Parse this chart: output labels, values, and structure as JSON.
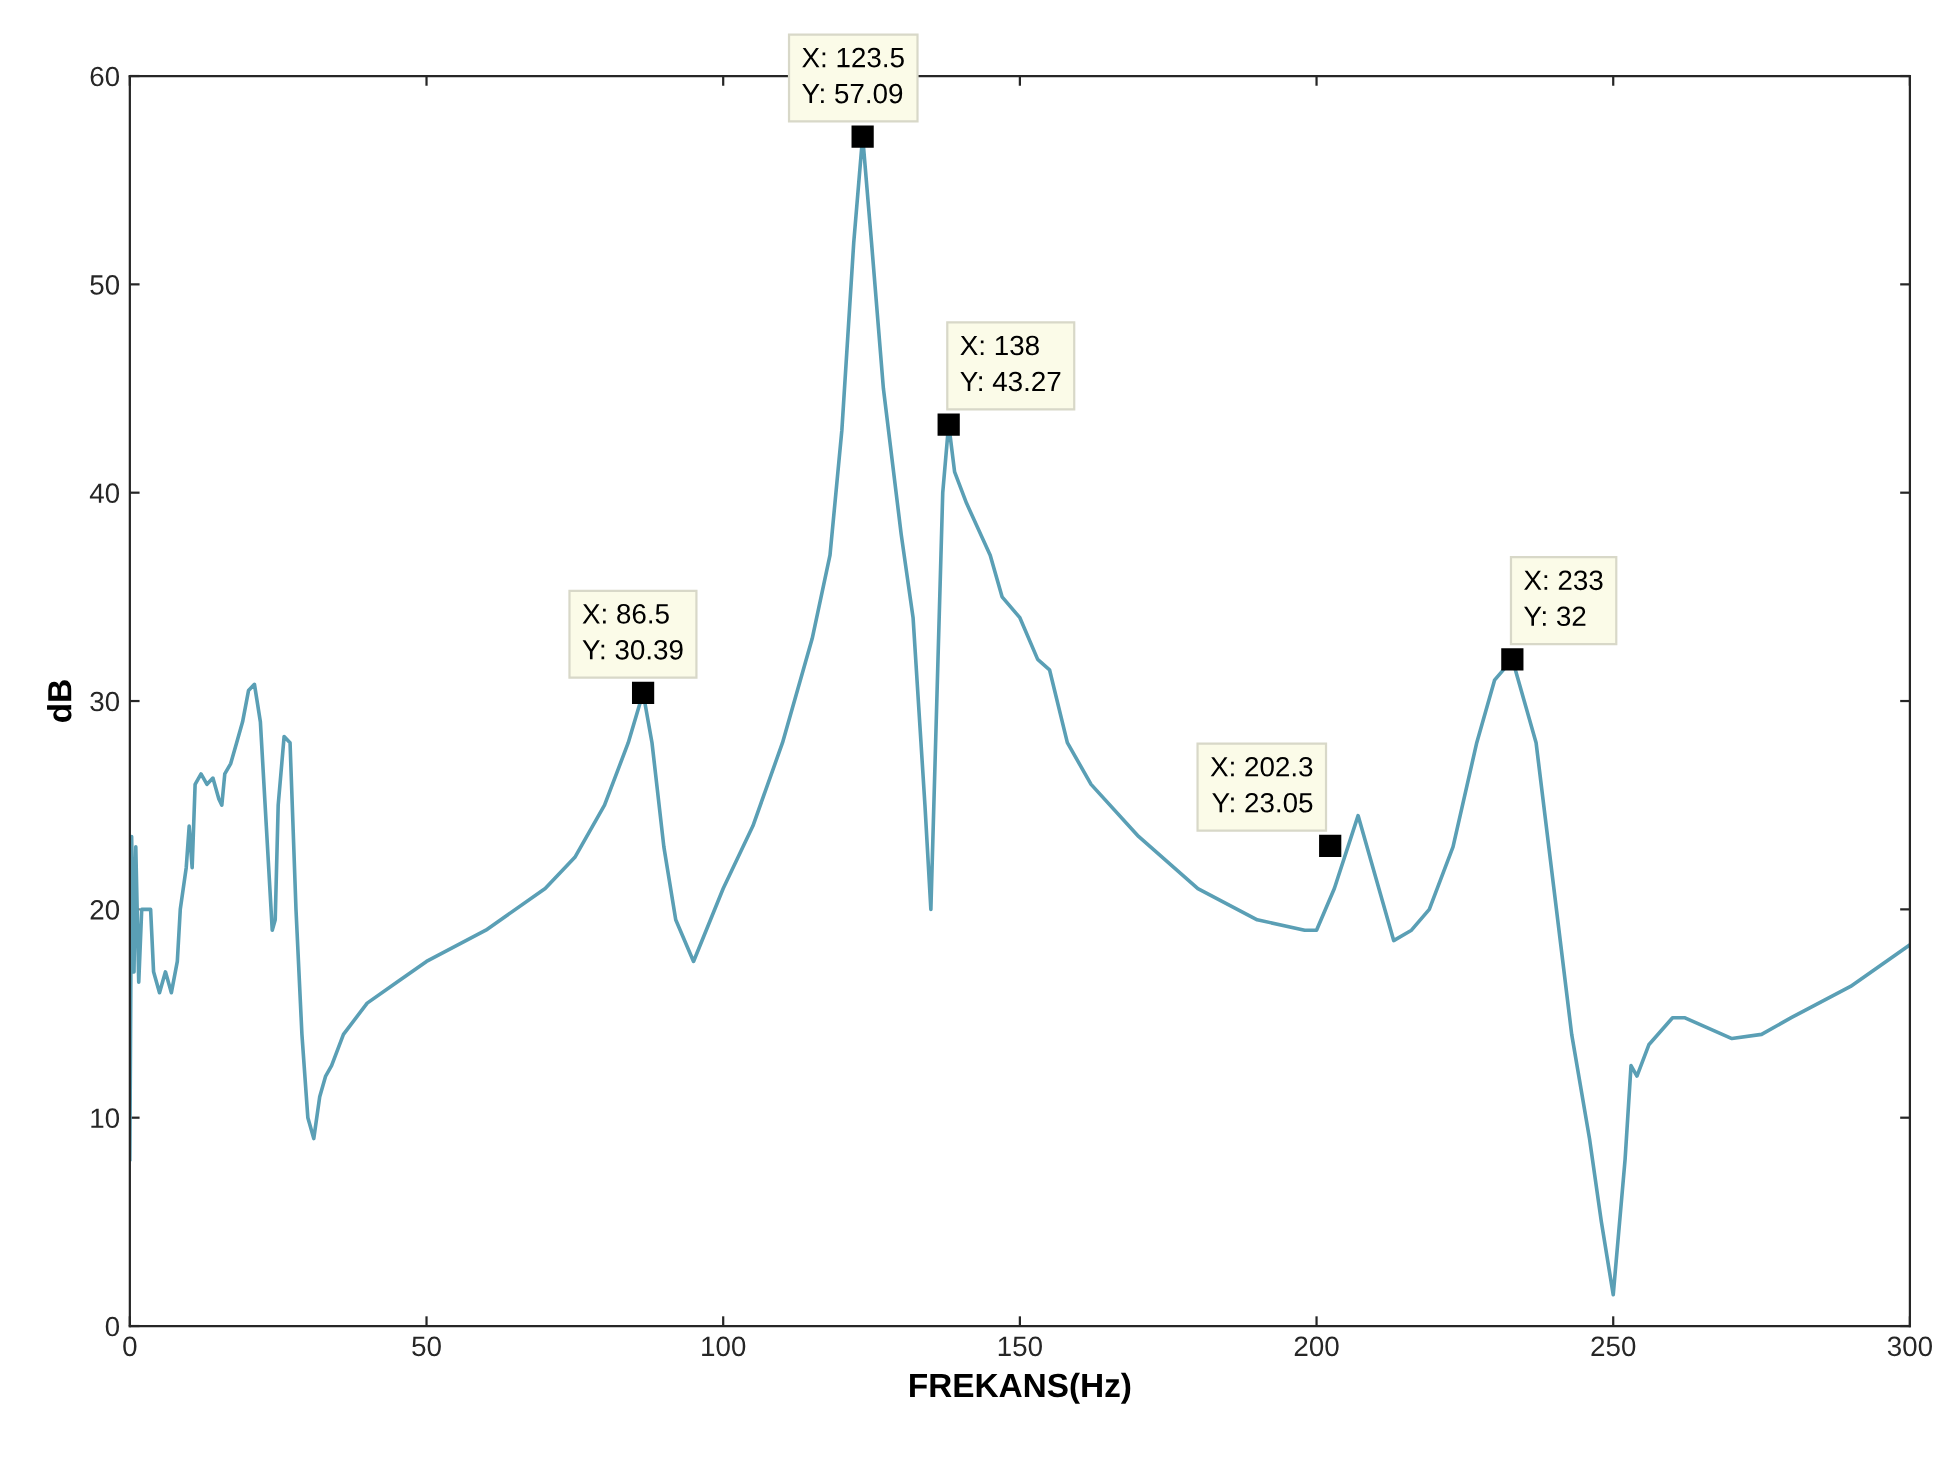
{
  "chart_data": {
    "type": "line",
    "xlabel": "FREKANS(Hz)",
    "ylabel": "dB",
    "xlim": [
      0,
      300
    ],
    "ylim": [
      0,
      60
    ],
    "xticks": [
      0,
      50,
      100,
      150,
      200,
      250,
      300
    ],
    "yticks": [
      0,
      10,
      20,
      30,
      40,
      50,
      60
    ],
    "grid": false,
    "marker": "none",
    "line_style": "solid",
    "series": [
      {
        "color": "#5a9fb5",
        "x": [
          0,
          0.3,
          0.7,
          1,
          1.5,
          2,
          3.5,
          4,
          5,
          6,
          7,
          8,
          8.5,
          9.5,
          10,
          10.5,
          11,
          12,
          13,
          14,
          15,
          15.5,
          16,
          17,
          18,
          19,
          20,
          21,
          22,
          23,
          24,
          24.5,
          25,
          26,
          27,
          28,
          29,
          30,
          31,
          32,
          33,
          34,
          36,
          40,
          45,
          50,
          60,
          70,
          75,
          80,
          84,
          86.5,
          88,
          90,
          92,
          95,
          100,
          105,
          110,
          115,
          118,
          120,
          122,
          123.5,
          125,
          127,
          130,
          132,
          134,
          135,
          136,
          137,
          138,
          139,
          141,
          145,
          147,
          150,
          153,
          155,
          158,
          162,
          170,
          180,
          190,
          198,
          200,
          203,
          207,
          210,
          213,
          216,
          219,
          223,
          227,
          230,
          233,
          235,
          237,
          240,
          243,
          246,
          248,
          250,
          252,
          253,
          254,
          256,
          260,
          262,
          266,
          270,
          275,
          280,
          290,
          300
        ],
        "values": [
          8,
          23.5,
          17,
          23,
          16.5,
          20,
          20,
          17,
          16,
          17,
          16,
          17.5,
          20,
          22,
          24,
          22,
          26,
          26.5,
          26,
          26.3,
          25.3,
          25,
          26.5,
          27,
          28,
          29,
          30.5,
          30.8,
          29,
          24,
          19,
          19.5,
          25,
          28.3,
          28,
          20,
          14,
          10,
          9,
          11,
          12,
          12.5,
          14,
          15.5,
          16.5,
          17.5,
          19,
          21,
          22.5,
          25,
          28,
          30.4,
          28,
          23,
          19.5,
          17.5,
          21,
          24,
          28,
          33,
          37,
          43,
          52,
          57.1,
          52,
          45,
          38,
          34,
          25,
          20,
          30,
          40,
          43.3,
          41,
          39.5,
          37,
          35,
          34,
          32,
          31.5,
          28,
          26,
          23.5,
          21,
          19.5,
          19,
          19,
          21,
          24.5,
          21.5,
          18.5,
          19,
          20,
          23,
          28,
          31,
          32,
          30,
          28,
          21,
          14,
          9,
          5,
          1.5,
          8,
          12.5,
          12,
          13.5,
          14.8,
          14.8,
          14.3,
          13.8,
          14,
          14.8,
          16.3,
          18.3
        ]
      }
    ],
    "annotations": [
      {
        "text": "X: 86.5\nY: 30.39",
        "x": 86.5,
        "y": 30.39
      },
      {
        "text": "X: 123.5\nY: 57.09",
        "x": 123.5,
        "y": 57.09
      },
      {
        "text": "X: 138\nY: 43.27",
        "x": 138,
        "y": 43.27
      },
      {
        "text": "X: 202.3\nY: 23.05",
        "x": 202.3,
        "y": 23.05
      },
      {
        "text": "X: 233\nY: 32",
        "x": 233,
        "y": 32
      }
    ]
  }
}
